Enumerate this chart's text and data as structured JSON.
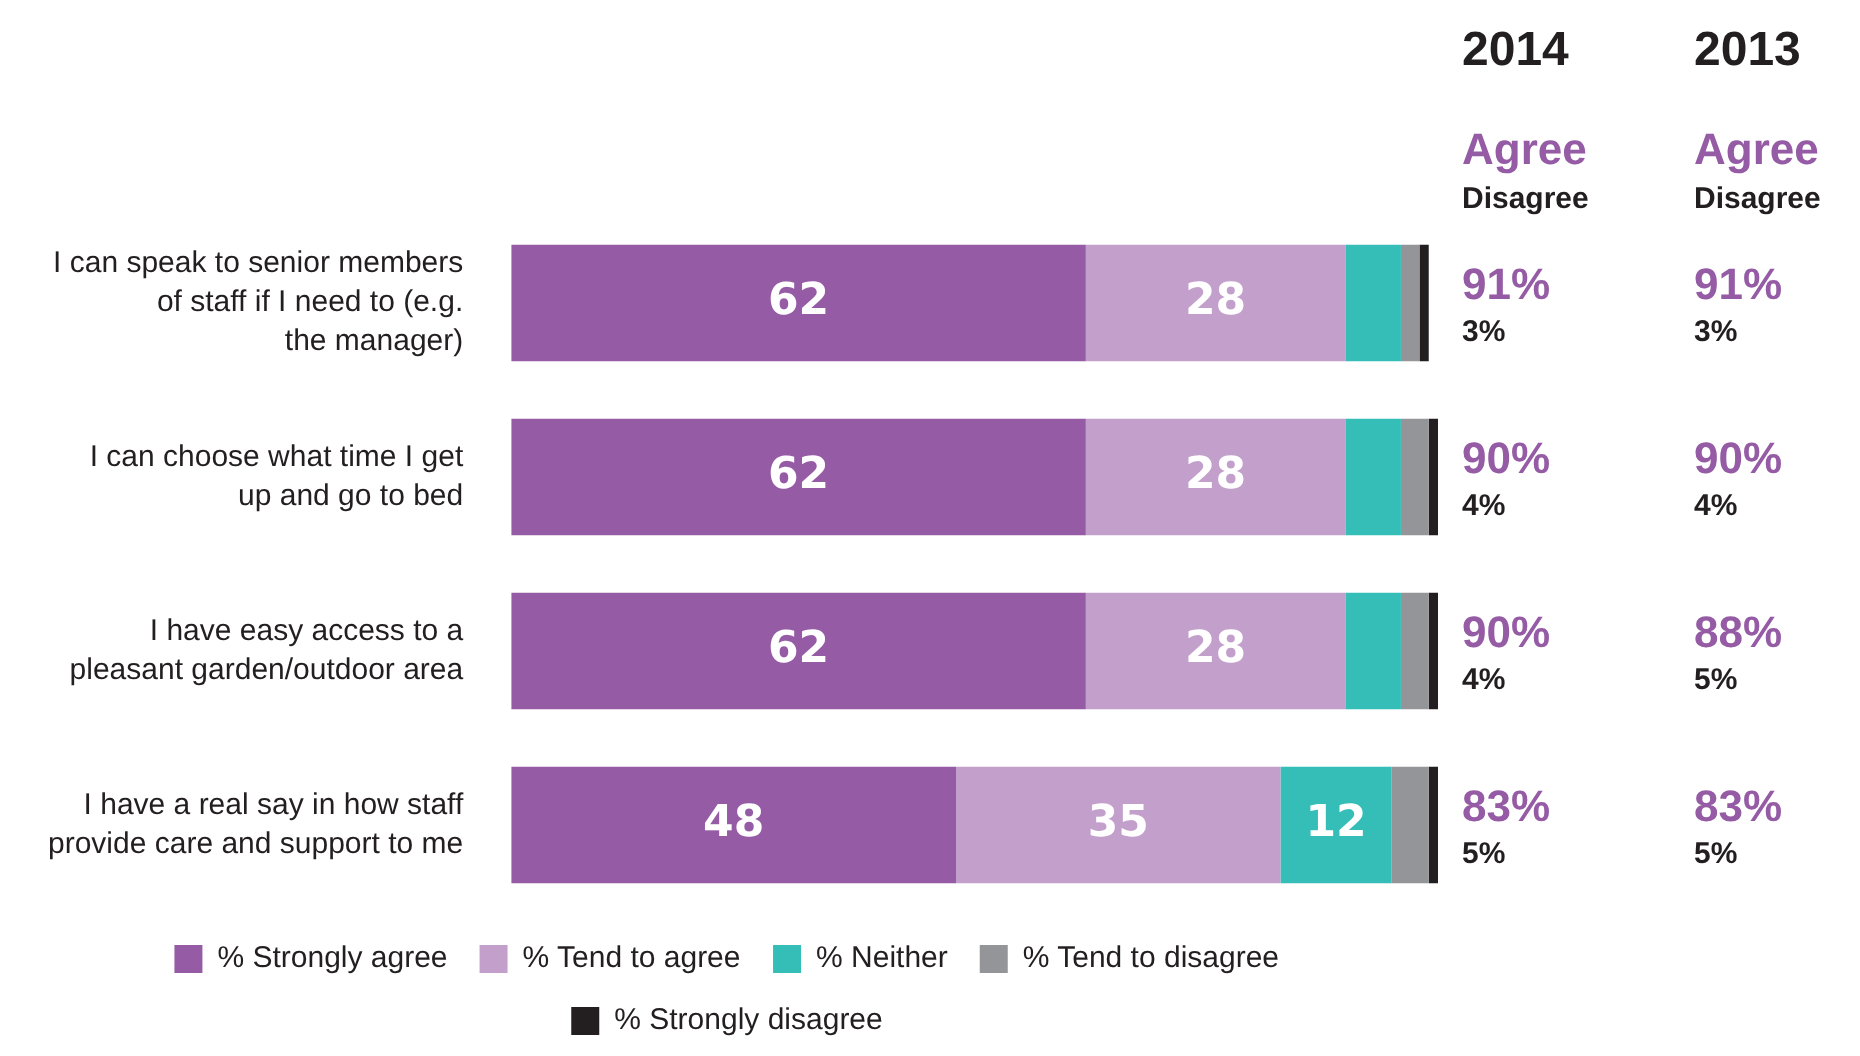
{
  "chart_data": {
    "type": "bar",
    "orientation": "horizontal",
    "stacked": true,
    "categories": [
      "I can speak to senior members of staff if I need to (e.g. the manager)",
      "I can choose what time I get up and go to bed",
      "I have easy access to a pleasant garden/outdoor area",
      "I have a real say in how staff provide care and support to me"
    ],
    "series": [
      {
        "name": "% Strongly agree",
        "color": "#955ba5",
        "values": [
          62,
          62,
          62,
          48
        ],
        "value_labels": [
          "62",
          "62",
          "62",
          "48"
        ]
      },
      {
        "name": "% Tend to agree",
        "color": "#c39fcb",
        "values": [
          28,
          28,
          28,
          35
        ],
        "value_labels": [
          "28",
          "28",
          "28",
          "35"
        ]
      },
      {
        "name": "% Neither",
        "color": "#35beb8",
        "values": [
          6,
          6,
          6,
          12
        ],
        "value_labels": [
          null,
          null,
          null,
          "12"
        ]
      },
      {
        "name": "% Tend to disagree",
        "color": "#939598",
        "values": [
          2,
          3,
          3,
          4
        ]
      },
      {
        "name": "% Strongly disagree",
        "color": "#231f20",
        "values": [
          1,
          1,
          1,
          1
        ]
      }
    ],
    "xlim": [
      0,
      100
    ],
    "tick_labels": "y",
    "legend": "bottom",
    "annotations": [
      "2014",
      "2013",
      "Agree",
      "Disagree",
      "Agree",
      "Disagree",
      "91%",
      "3%",
      "91%",
      "3%",
      "90%",
      "4%",
      "90%",
      "4%",
      "90%",
      "4%",
      "88%",
      "5%",
      "83%",
      "5%",
      "83%",
      "5%"
    ]
  }
}
